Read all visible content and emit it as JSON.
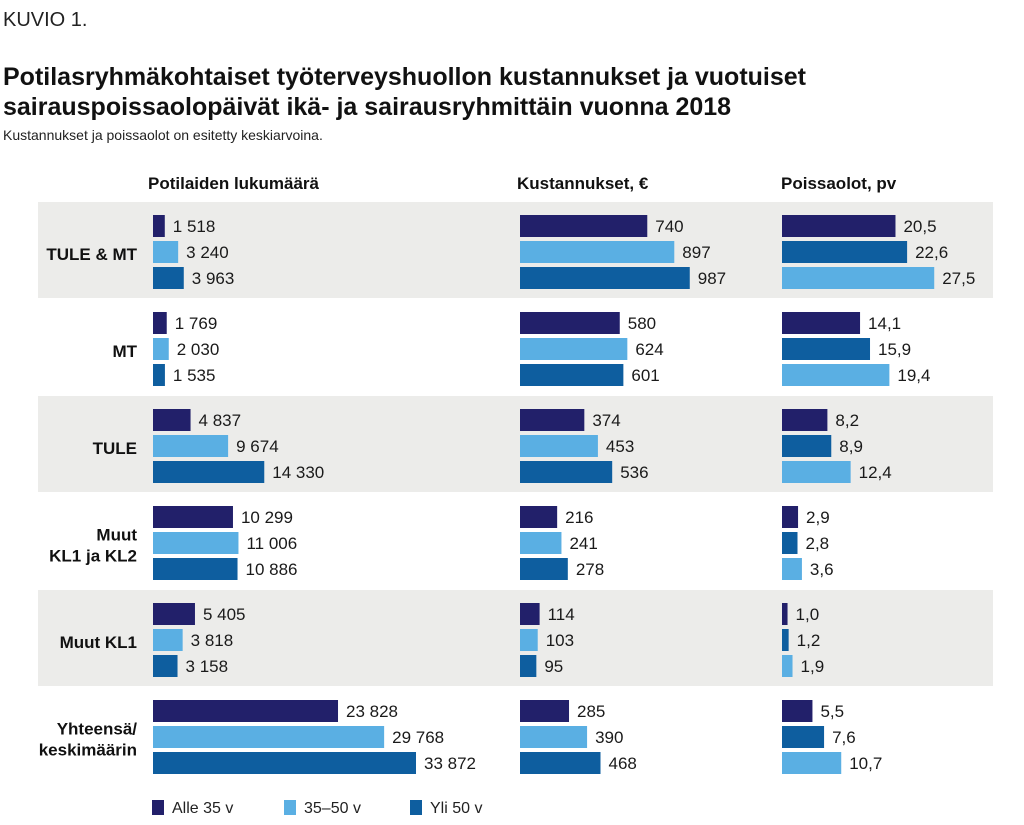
{
  "header": {
    "kuvio": "KUVIO 1.",
    "title": "Potilasryhmäkohtaiset työterveyshuollon kustannukset ja vuotuiset sairauspoissaolopäivät ikä- ja sairausryhmittäin vuonna 2018",
    "subtitle": "Kustannukset ja poissaolot on esitetty keskiarvoina."
  },
  "chart_data": {
    "type": "bar",
    "orientation": "horizontal",
    "grouping": "small-multiples",
    "groups": [
      [
        "TULE & MT"
      ],
      [
        "MT"
      ],
      [
        "TULE"
      ],
      [
        "Muut",
        "KL1 ja KL2"
      ],
      [
        "Muut KL1"
      ],
      [
        "Yhteensä/",
        "keskimäärin"
      ]
    ],
    "series_names": [
      "Alle 35 v",
      "35–50 v",
      "Yli 50 v"
    ],
    "colors": [
      "#22206a",
      "#5aafe3",
      "#0e5e9f"
    ],
    "band_colors": [
      "#ececea",
      "#ffffff"
    ],
    "panels": [
      {
        "title": "Potilaiden lukumäärä",
        "max": 34000,
        "values": [
          [
            1518,
            3240,
            3963
          ],
          [
            1769,
            2030,
            1535
          ],
          [
            4837,
            9674,
            14330
          ],
          [
            10299,
            11006,
            10886
          ],
          [
            5405,
            3818,
            3158
          ],
          [
            23828,
            29768,
            33872
          ]
        ],
        "labels": [
          [
            "1 518",
            "3 240",
            "3 963"
          ],
          [
            "1 769",
            "2 030",
            "1 535"
          ],
          [
            "4 837",
            "9 674",
            "14 330"
          ],
          [
            "10 299",
            "11 006",
            "10 886"
          ],
          [
            "5 405",
            "3 818",
            "3 158"
          ],
          [
            "23 828",
            "29 768",
            "33 872"
          ]
        ],
        "color_order": [
          0,
          1,
          2
        ]
      },
      {
        "title": "Kustannukset, €",
        "max": 1000,
        "values": [
          [
            740,
            897,
            987
          ],
          [
            580,
            624,
            601
          ],
          [
            374,
            453,
            536
          ],
          [
            216,
            241,
            278
          ],
          [
            114,
            103,
            95
          ],
          [
            285,
            390,
            468
          ]
        ],
        "labels": [
          [
            "740",
            "897",
            "987"
          ],
          [
            "580",
            "624",
            "601"
          ],
          [
            "374",
            "453",
            "536"
          ],
          [
            "216",
            "241",
            "278"
          ],
          [
            "114",
            "103",
            "95"
          ],
          [
            "285",
            "390",
            "468"
          ]
        ],
        "color_order": [
          0,
          1,
          2
        ]
      },
      {
        "title": "Poissaolot, pv",
        "max": 28,
        "values": [
          [
            20.5,
            22.6,
            27.5
          ],
          [
            14.1,
            15.9,
            19.4
          ],
          [
            8.2,
            8.9,
            12.4
          ],
          [
            2.9,
            2.8,
            3.6
          ],
          [
            1.0,
            1.2,
            1.9
          ],
          [
            5.5,
            7.6,
            10.7
          ]
        ],
        "labels": [
          [
            "20,5",
            "22,6",
            "27,5"
          ],
          [
            "14,1",
            "15,9",
            "19,4"
          ],
          [
            "8,2",
            "8,9",
            "12,4"
          ],
          [
            "2,9",
            "2,8",
            "3,6"
          ],
          [
            "1,0",
            "1,2",
            "1,9"
          ],
          [
            "5,5",
            "7,6",
            "10,7"
          ]
        ],
        "color_order": [
          0,
          2,
          1
        ]
      }
    ]
  },
  "legend": {
    "items": [
      {
        "label": "Alle 35 v",
        "color": "#22206a"
      },
      {
        "label": "35–50 v",
        "color": "#5aafe3"
      },
      {
        "label": "Yli 50 v",
        "color": "#0e5e9f"
      }
    ]
  }
}
